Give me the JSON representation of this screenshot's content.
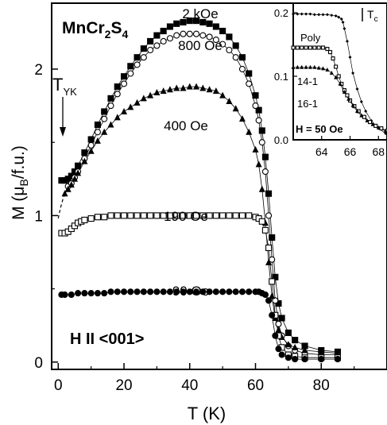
{
  "chart_data": [
    {
      "type": "scatter",
      "title": "MnCr2S4",
      "xlabel": "T (K)",
      "ylabel": "M (μB/f.u.)",
      "xlim": [
        -2,
        100
      ],
      "ylim": [
        -0.05,
        2.45
      ],
      "xticks": [
        "0",
        "20",
        "40",
        "60",
        "80"
      ],
      "yticks": [
        "0",
        "1",
        "2"
      ],
      "grid": false,
      "legend": "none (series labeled on curves)",
      "condition": "H II <001>",
      "marker_annotation": {
        "label": "T",
        "subscript": "YK",
        "x": 3
      },
      "series": [
        {
          "name": "2 kOe",
          "marker": "filled-square",
          "x": [
            1,
            2,
            3,
            4,
            5,
            6,
            8,
            10,
            12,
            14,
            16,
            18,
            20,
            22,
            24,
            26,
            28,
            30,
            32,
            34,
            36,
            38,
            40,
            42,
            44,
            46,
            48,
            50,
            52,
            54,
            56,
            58,
            60,
            61,
            62,
            63,
            64,
            65,
            66,
            67,
            68,
            70,
            72,
            75,
            80,
            85
          ],
          "values": [
            1.24,
            1.24,
            1.25,
            1.27,
            1.3,
            1.34,
            1.43,
            1.52,
            1.62,
            1.71,
            1.8,
            1.88,
            1.95,
            2.02,
            2.08,
            2.14,
            2.19,
            2.23,
            2.26,
            2.29,
            2.31,
            2.32,
            2.33,
            2.33,
            2.32,
            2.31,
            2.29,
            2.26,
            2.22,
            2.16,
            2.08,
            1.97,
            1.82,
            1.72,
            1.58,
            1.4,
            1.15,
            0.85,
            0.58,
            0.4,
            0.3,
            0.2,
            0.15,
            0.11,
            0.08,
            0.07
          ]
        },
        {
          "name": "800 Oe",
          "marker": "open-circle",
          "x": [
            3,
            4,
            5,
            6,
            8,
            10,
            12,
            14,
            16,
            18,
            20,
            22,
            24,
            26,
            28,
            30,
            32,
            34,
            36,
            38,
            40,
            42,
            44,
            46,
            48,
            50,
            52,
            54,
            56,
            58,
            60,
            61,
            62,
            63,
            64,
            65,
            66,
            67,
            68,
            70,
            72,
            75,
            80,
            85
          ],
          "values": [
            1.2,
            1.22,
            1.26,
            1.3,
            1.39,
            1.48,
            1.57,
            1.66,
            1.75,
            1.83,
            1.9,
            1.97,
            2.03,
            2.08,
            2.13,
            2.16,
            2.19,
            2.21,
            2.23,
            2.24,
            2.24,
            2.24,
            2.23,
            2.22,
            2.2,
            2.17,
            2.13,
            2.08,
            2.0,
            1.9,
            1.75,
            1.65,
            1.5,
            1.3,
            1.0,
            0.7,
            0.42,
            0.26,
            0.18,
            0.11,
            0.08,
            0.06,
            0.05,
            0.05
          ]
        },
        {
          "name": "400 Oe",
          "marker": "filled-triangle",
          "x": [
            2,
            3,
            4,
            5,
            6,
            8,
            10,
            12,
            14,
            16,
            18,
            20,
            22,
            24,
            26,
            28,
            30,
            32,
            34,
            36,
            38,
            40,
            42,
            44,
            46,
            48,
            50,
            52,
            54,
            56,
            58,
            60,
            61,
            62,
            63,
            64,
            65,
            66,
            67,
            68,
            70,
            72,
            75,
            80,
            85
          ],
          "values": [
            1.15,
            1.18,
            1.21,
            1.25,
            1.29,
            1.37,
            1.44,
            1.51,
            1.57,
            1.62,
            1.67,
            1.71,
            1.74,
            1.77,
            1.8,
            1.82,
            1.84,
            1.85,
            1.86,
            1.87,
            1.87,
            1.88,
            1.88,
            1.87,
            1.86,
            1.85,
            1.82,
            1.78,
            1.73,
            1.66,
            1.57,
            1.45,
            1.35,
            1.18,
            0.95,
            0.68,
            0.45,
            0.3,
            0.22,
            0.17,
            0.12,
            0.1,
            0.08,
            0.07,
            0.06
          ]
        },
        {
          "name": "190 Oe",
          "marker": "open-square",
          "x": [
            1,
            2,
            3,
            4,
            5,
            6,
            7,
            8,
            10,
            12,
            14,
            16,
            18,
            20,
            22,
            24,
            26,
            28,
            30,
            32,
            34,
            36,
            38,
            40,
            42,
            44,
            46,
            48,
            50,
            52,
            54,
            56,
            58,
            60,
            61,
            62,
            63,
            64,
            65,
            66,
            67,
            68,
            70,
            72,
            75,
            80,
            85
          ],
          "values": [
            0.88,
            0.88,
            0.89,
            0.91,
            0.93,
            0.95,
            0.96,
            0.97,
            0.98,
            0.99,
            0.99,
            1.0,
            1.0,
            1.0,
            1.0,
            1.0,
            1.0,
            1.0,
            1.0,
            1.0,
            1.0,
            1.0,
            1.0,
            1.0,
            1.0,
            1.0,
            1.0,
            1.0,
            1.0,
            1.0,
            1.0,
            1.0,
            1.0,
            0.99,
            0.98,
            0.96,
            0.9,
            0.78,
            0.55,
            0.32,
            0.18,
            0.1,
            0.05,
            0.04,
            0.03,
            0.03,
            0.03
          ]
        },
        {
          "name": "90 Oe",
          "marker": "filled-circle",
          "x": [
            1,
            2,
            4,
            6,
            8,
            10,
            12,
            14,
            16,
            18,
            20,
            22,
            24,
            26,
            28,
            30,
            32,
            34,
            36,
            38,
            40,
            42,
            44,
            46,
            48,
            50,
            52,
            54,
            56,
            58,
            60,
            61,
            62,
            63,
            64,
            65,
            66,
            67,
            68,
            70,
            72,
            75,
            80,
            85
          ],
          "values": [
            0.46,
            0.46,
            0.46,
            0.47,
            0.47,
            0.47,
            0.47,
            0.47,
            0.48,
            0.48,
            0.48,
            0.48,
            0.48,
            0.48,
            0.48,
            0.48,
            0.48,
            0.48,
            0.48,
            0.48,
            0.48,
            0.48,
            0.48,
            0.48,
            0.48,
            0.48,
            0.48,
            0.48,
            0.48,
            0.48,
            0.48,
            0.48,
            0.47,
            0.46,
            0.42,
            0.32,
            0.18,
            0.09,
            0.05,
            0.03,
            0.02,
            0.02,
            0.02,
            0.02
          ]
        }
      ]
    },
    {
      "type": "scatter",
      "title": "",
      "xlabel": "",
      "ylabel": "",
      "xlim": [
        62.0,
        68.6
      ],
      "ylim": [
        0.0,
        0.215
      ],
      "xticks": [
        "64",
        "66",
        "68"
      ],
      "yticks": [
        "0.0",
        "0.1",
        "0.2"
      ],
      "condition": "H = 50 Oe",
      "annotation": {
        "label": "T",
        "subscript": "c",
        "x": 65.6
      },
      "series": [
        {
          "name": "Poly",
          "marker": "filled-diamond",
          "x": [
            62.0,
            62.3,
            62.6,
            62.9,
            63.2,
            63.5,
            63.8,
            64.1,
            64.4,
            64.7,
            65.0,
            65.2,
            65.4,
            65.5,
            65.6,
            65.8,
            66.0,
            66.2,
            66.5,
            66.8,
            67.1,
            67.5,
            68.0,
            68.5
          ],
          "values": [
            0.198,
            0.198,
            0.198,
            0.198,
            0.198,
            0.197,
            0.197,
            0.197,
            0.197,
            0.196,
            0.195,
            0.193,
            0.19,
            0.185,
            0.175,
            0.155,
            0.13,
            0.105,
            0.08,
            0.06,
            0.045,
            0.03,
            0.018,
            0.01
          ]
        },
        {
          "name": "14-1",
          "marker": "open-square",
          "x": [
            62.0,
            62.3,
            62.6,
            62.9,
            63.2,
            63.5,
            63.8,
            64.1,
            64.4,
            64.6,
            64.8,
            65.0,
            65.2,
            65.4,
            65.6,
            65.8,
            66.0,
            66.3,
            66.6,
            67.0,
            67.4,
            67.8,
            68.2,
            68.6
          ],
          "values": [
            0.145,
            0.145,
            0.145,
            0.145,
            0.145,
            0.145,
            0.145,
            0.145,
            0.143,
            0.138,
            0.128,
            0.115,
            0.1,
            0.088,
            0.078,
            0.07,
            0.062,
            0.053,
            0.045,
            0.036,
            0.028,
            0.022,
            0.018,
            0.014
          ]
        },
        {
          "name": "16-1",
          "marker": "filled-triangle",
          "x": [
            62.0,
            62.3,
            62.6,
            62.9,
            63.2,
            63.5,
            63.8,
            64.1,
            64.4,
            64.7,
            65.0,
            65.3,
            65.6,
            65.9,
            66.2,
            66.5,
            66.8,
            67.2,
            67.6,
            68.0,
            68.5
          ],
          "values": [
            0.114,
            0.114,
            0.114,
            0.114,
            0.114,
            0.114,
            0.113,
            0.112,
            0.11,
            0.105,
            0.098,
            0.088,
            0.075,
            0.064,
            0.054,
            0.045,
            0.038,
            0.03,
            0.024,
            0.019,
            0.014
          ]
        }
      ]
    }
  ]
}
